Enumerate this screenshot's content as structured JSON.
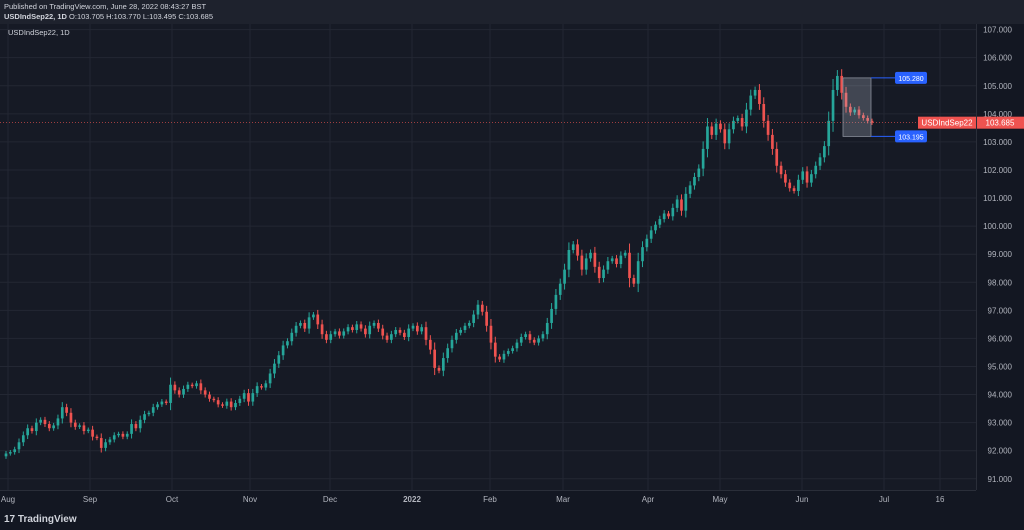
{
  "header": {
    "published": "Published on TradingView.com, June 28, 2022 08:43:27 BST",
    "symbol_tf": "USDIndSep22, 1D",
    "o_label": "O:",
    "o_val": "103.705",
    "h_label": "H:",
    "h_val": "103.770",
    "l_label": "L:",
    "l_val": "103.495",
    "c_label": "C:",
    "c_val": "103.685"
  },
  "chart_label": "USDIndSep22, 1D",
  "footer": {
    "brand": "TradingView",
    "logo_text": "17"
  },
  "colors": {
    "up": "#26a69a",
    "down": "#ef5350",
    "accent": "#2962ff",
    "bg": "#161a25"
  },
  "chart_data": {
    "type": "candlestick",
    "symbol": "USDIndSep22",
    "timeframe": "1D",
    "ylim": [
      90.6,
      107.2
    ],
    "y_ticks": [
      "91.000",
      "92.000",
      "93.000",
      "94.000",
      "95.000",
      "96.000",
      "97.000",
      "98.000",
      "99.000",
      "100.000",
      "101.000",
      "102.000",
      "103.000",
      "104.000",
      "105.000",
      "106.000",
      "107.000"
    ],
    "x_ticks": [
      "Aug",
      "Sep",
      "Oct",
      "Nov",
      "Dec",
      "2022",
      "Feb",
      "Mar",
      "Apr",
      "May",
      "Jun",
      "Jul",
      "16"
    ],
    "grid": true,
    "last_price": {
      "label": "USDIndSep22",
      "value": "103.685",
      "y": 103.685
    },
    "range_box": {
      "top_label": "105.280",
      "top": 105.28,
      "bottom_label": "103.195",
      "bottom": 103.195
    },
    "closes": [
      91.9,
      91.95,
      92.05,
      92.3,
      92.55,
      92.8,
      92.7,
      93.0,
      93.1,
      92.95,
      92.8,
      92.9,
      93.15,
      93.55,
      93.35,
      93.0,
      92.85,
      92.9,
      92.7,
      92.75,
      92.5,
      92.45,
      92.1,
      92.3,
      92.4,
      92.55,
      92.6,
      92.5,
      92.6,
      92.95,
      92.8,
      93.1,
      93.3,
      93.35,
      93.55,
      93.65,
      93.75,
      93.7,
      94.35,
      94.15,
      94.0,
      94.2,
      94.35,
      94.3,
      94.4,
      94.15,
      94.0,
      93.85,
      93.8,
      93.65,
      93.6,
      93.75,
      93.55,
      93.7,
      93.85,
      94.05,
      93.75,
      94.05,
      94.3,
      94.25,
      94.4,
      94.75,
      95.1,
      95.4,
      95.75,
      95.9,
      96.2,
      96.45,
      96.55,
      96.35,
      96.75,
      96.85,
      96.5,
      96.15,
      95.95,
      96.15,
      96.25,
      96.1,
      96.25,
      96.4,
      96.3,
      96.5,
      96.35,
      96.15,
      96.45,
      96.55,
      96.35,
      96.1,
      95.95,
      96.15,
      96.3,
      96.2,
      96.05,
      96.35,
      96.45,
      96.25,
      96.4,
      95.95,
      95.6,
      94.95,
      94.85,
      95.3,
      95.65,
      95.95,
      96.2,
      96.3,
      96.45,
      96.55,
      96.85,
      97.2,
      96.95,
      96.45,
      95.85,
      95.35,
      95.25,
      95.45,
      95.55,
      95.65,
      95.85,
      96.05,
      96.15,
      95.95,
      95.85,
      96.0,
      96.15,
      96.55,
      97.05,
      97.55,
      97.95,
      98.45,
      99.15,
      99.35,
      98.95,
      98.45,
      98.85,
      99.05,
      98.55,
      98.15,
      98.45,
      98.75,
      98.85,
      98.65,
      98.95,
      99.05,
      98.15,
      97.95,
      98.75,
      99.25,
      99.55,
      99.85,
      100.05,
      100.25,
      100.45,
      100.35,
      100.65,
      100.95,
      100.55,
      101.15,
      101.45,
      101.75,
      102.05,
      102.75,
      103.55,
      103.25,
      103.65,
      103.45,
      102.95,
      103.45,
      103.75,
      103.85,
      103.55,
      104.15,
      104.65,
      104.85,
      104.35,
      103.75,
      103.25,
      102.75,
      102.15,
      101.85,
      101.55,
      101.35,
      101.25,
      101.65,
      101.95,
      101.55,
      101.85,
      102.15,
      102.45,
      102.85,
      103.75,
      104.85,
      105.35,
      104.75,
      104.25,
      104.05,
      104.15,
      103.95,
      103.85,
      103.75,
      103.685
    ]
  }
}
